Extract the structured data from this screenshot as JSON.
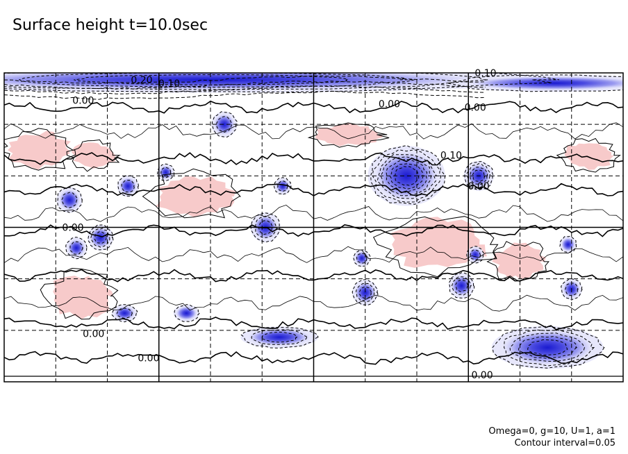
{
  "title": "Surface height t=10.0sec",
  "footer": {
    "params": "Omega=0, g=10, U=1, a=1",
    "interval": "Contour interval=0.05"
  },
  "colors": {
    "positive": "#f4b8b8",
    "negative": "#7070e8",
    "negative_light": "#e4e4fb",
    "contour": "#000000"
  },
  "chart_data": {
    "type": "contour",
    "title": "Surface height t=10.0sec",
    "contour_interval": 0.05,
    "xlim": [
      0,
      360
    ],
    "ylim": [
      -90,
      90
    ],
    "major_grid_x": [
      90,
      180,
      270
    ],
    "minor_grid_x": [
      30,
      60,
      120,
      150,
      210,
      240,
      300,
      330
    ],
    "major_grid_y": [
      0
    ],
    "minor_grid_y": [
      -60,
      -30,
      30,
      60
    ],
    "contour_labels": [
      {
        "text": "0.20",
        "x": 80,
        "y": 84
      },
      {
        "text": "0.10",
        "x": 96,
        "y": 82
      },
      {
        "text": "0.10",
        "x": 280,
        "y": 88
      },
      {
        "text": "0.00",
        "x": 46,
        "y": 72
      },
      {
        "text": "0.00",
        "x": 224,
        "y": 70
      },
      {
        "text": "0.00",
        "x": 274,
        "y": 68
      },
      {
        "text": "0.10",
        "x": 260,
        "y": 40
      },
      {
        "text": "0.00",
        "x": 276,
        "y": 22
      },
      {
        "text": "0.00",
        "x": 40,
        "y": -2
      },
      {
        "text": "0.00",
        "x": 52,
        "y": -64
      },
      {
        "text": "0.00",
        "x": 84,
        "y": -78
      },
      {
        "text": "0.00",
        "x": 278,
        "y": -88
      }
    ],
    "positive_regions": [
      {
        "x": 20,
        "y": 45,
        "rx": 18,
        "ry": 10,
        "value": 0.05
      },
      {
        "x": 52,
        "y": 42,
        "rx": 12,
        "ry": 7,
        "value": 0.05
      },
      {
        "x": 110,
        "y": 18,
        "rx": 22,
        "ry": 12,
        "value": 0.05
      },
      {
        "x": 200,
        "y": 54,
        "rx": 18,
        "ry": 6,
        "value": 0.05
      },
      {
        "x": 252,
        "y": -10,
        "rx": 28,
        "ry": 14,
        "value": 0.05
      },
      {
        "x": 45,
        "y": -40,
        "rx": 18,
        "ry": 12,
        "value": 0.05
      },
      {
        "x": 340,
        "y": 42,
        "rx": 14,
        "ry": 8,
        "value": 0.05
      },
      {
        "x": 300,
        "y": -20,
        "rx": 14,
        "ry": 10,
        "value": 0.05
      }
    ],
    "negative_regions": [
      {
        "x": 120,
        "y": 86,
        "rx": 160,
        "ry": 6,
        "value": -0.2
      },
      {
        "x": 320,
        "y": 84,
        "rx": 50,
        "ry": 4,
        "value": -0.05
      },
      {
        "x": 128,
        "y": 60,
        "rx": 6,
        "ry": 6,
        "value": -0.1
      },
      {
        "x": 94,
        "y": 32,
        "rx": 4,
        "ry": 4,
        "value": -0.1
      },
      {
        "x": 72,
        "y": 24,
        "rx": 5,
        "ry": 5,
        "value": -0.1
      },
      {
        "x": 38,
        "y": 16,
        "rx": 6,
        "ry": 6,
        "value": -0.1
      },
      {
        "x": 162,
        "y": 24,
        "rx": 4,
        "ry": 4,
        "value": -0.1
      },
      {
        "x": 234,
        "y": 30,
        "rx": 18,
        "ry": 14,
        "value": -0.35
      },
      {
        "x": 276,
        "y": 30,
        "rx": 7,
        "ry": 7,
        "value": -0.2
      },
      {
        "x": 152,
        "y": 0,
        "rx": 7,
        "ry": 7,
        "value": -0.15
      },
      {
        "x": 56,
        "y": -6,
        "rx": 6,
        "ry": 6,
        "value": -0.15
      },
      {
        "x": 42,
        "y": -12,
        "rx": 5,
        "ry": 5,
        "value": -0.1
      },
      {
        "x": 208,
        "y": -18,
        "rx": 4,
        "ry": 4,
        "value": -0.1
      },
      {
        "x": 266,
        "y": -34,
        "rx": 6,
        "ry": 6,
        "value": -0.15
      },
      {
        "x": 210,
        "y": -38,
        "rx": 6,
        "ry": 6,
        "value": -0.15
      },
      {
        "x": 274,
        "y": -16,
        "rx": 4,
        "ry": 4,
        "value": -0.1
      },
      {
        "x": 328,
        "y": -10,
        "rx": 4,
        "ry": 4,
        "value": -0.05
      },
      {
        "x": 330,
        "y": -36,
        "rx": 5,
        "ry": 5,
        "value": -0.1
      },
      {
        "x": 70,
        "y": -50,
        "rx": 6,
        "ry": 4,
        "value": -0.1
      },
      {
        "x": 106,
        "y": -50,
        "rx": 6,
        "ry": 4,
        "value": -0.05
      },
      {
        "x": 160,
        "y": -64,
        "rx": 18,
        "ry": 5,
        "value": -0.15
      },
      {
        "x": 316,
        "y": -70,
        "rx": 26,
        "ry": 10,
        "value": -0.25
      }
    ]
  }
}
